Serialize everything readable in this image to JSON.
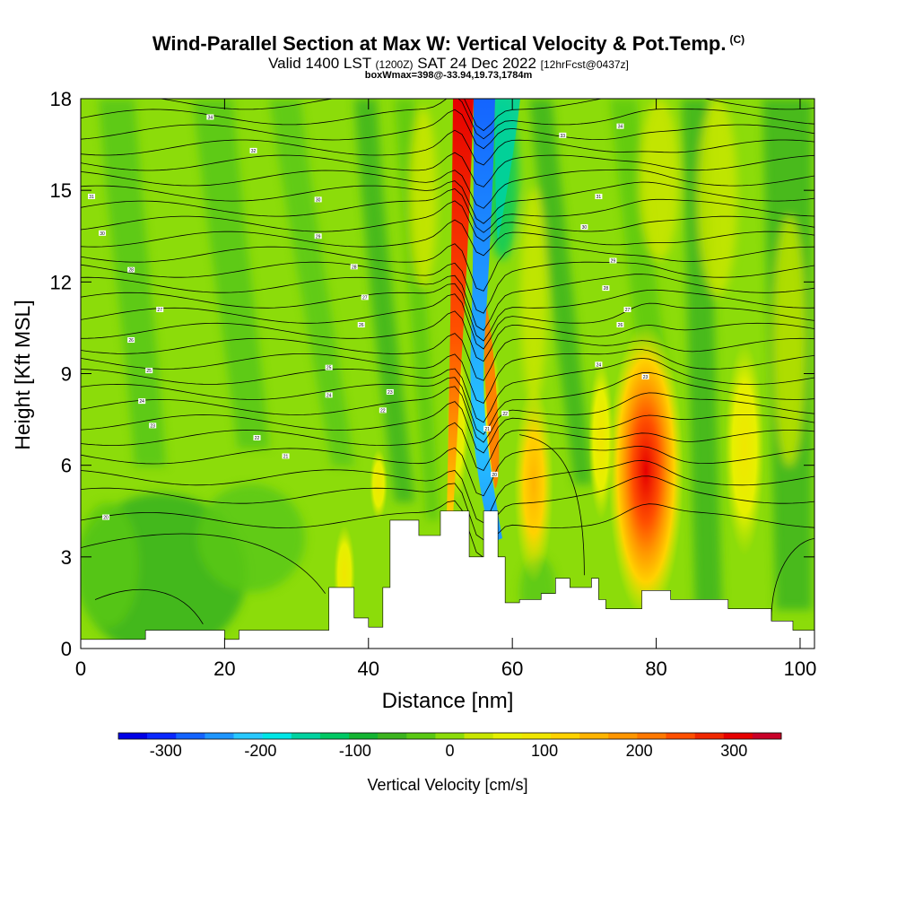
{
  "title": {
    "main": "Wind-Parallel Section at Max W: Vertical Velocity & Pot.Temp.",
    "units_tag": "(C)",
    "valid_prefix": "Valid 1400 LST",
    "valid_utc": "(1200Z)",
    "valid_date": "SAT 24 Dec 2022",
    "forecast": "[12hrFcst@0437z]",
    "box_info": "boxWmax=398@-33.94,19.73,1784m"
  },
  "chart_data": {
    "type": "heatmap",
    "xlabel": "Distance [nm]",
    "ylabel": "Height [Kft MSL]",
    "xlim": [
      0,
      102
    ],
    "ylim": [
      0,
      18
    ],
    "x_ticks": [
      0,
      20,
      40,
      60,
      80,
      100
    ],
    "y_ticks": [
      0,
      3,
      6,
      9,
      12,
      15,
      18
    ],
    "colorbar": {
      "label": "Vertical Velocity [cm/s]",
      "range": [
        -350,
        350
      ],
      "tick_values": [
        -300,
        -200,
        -100,
        0,
        100,
        200,
        300
      ],
      "tick_labels": [
        "-300",
        "-200",
        "-100",
        "0",
        "100",
        "200",
        "300"
      ],
      "colors": [
        "#0000e6",
        "#0a28ff",
        "#1464ff",
        "#1e96ff",
        "#28c8ff",
        "#00e6e6",
        "#00d2a0",
        "#00c864",
        "#14b432",
        "#3cb41e",
        "#5ac814",
        "#8cdc0a",
        "#c8e600",
        "#e6f000",
        "#f0e600",
        "#ffd200",
        "#ffb400",
        "#ff9600",
        "#ff7800",
        "#ff5000",
        "#f02800",
        "#e60000",
        "#c80028"
      ]
    },
    "features": [
      {
        "name": "updraft-core-52nm",
        "x": 52.5,
        "y_range": [
          5,
          18
        ],
        "w_cm_s": 330
      },
      {
        "name": "downdraft-core-56nm",
        "x": 55.5,
        "y_range": [
          3,
          18
        ],
        "w_cm_s": -280
      },
      {
        "name": "updraft-80nm",
        "x": 78.5,
        "y_range": [
          3,
          9
        ],
        "w_cm_s": 330
      },
      {
        "name": "updraft-63nm",
        "x": 63,
        "y_range": [
          3,
          8
        ],
        "w_cm_s": 180
      },
      {
        "name": "updraft-38nm",
        "x": 37.5,
        "y_range": [
          1,
          6
        ],
        "w_cm_s": 130
      }
    ],
    "terrain_kft": [
      [
        0,
        0.3
      ],
      [
        5,
        0.3
      ],
      [
        9,
        0.6
      ],
      [
        18,
        0.6
      ],
      [
        20,
        0.3
      ],
      [
        22,
        0.6
      ],
      [
        34,
        0.6
      ],
      [
        34.5,
        2.0
      ],
      [
        37,
        2.0
      ],
      [
        38,
        1.0
      ],
      [
        40,
        0.7
      ],
      [
        42,
        2.0
      ],
      [
        43,
        4.2
      ],
      [
        46,
        4.2
      ],
      [
        47,
        3.7
      ],
      [
        49,
        3.7
      ],
      [
        50,
        4.5
      ],
      [
        53,
        4.5
      ],
      [
        54,
        3.0
      ],
      [
        56,
        4.5
      ],
      [
        58,
        3.0
      ],
      [
        59,
        1.5
      ],
      [
        61,
        1.6
      ],
      [
        64,
        1.8
      ],
      [
        66,
        2.3
      ],
      [
        68,
        2.0
      ],
      [
        71,
        2.3
      ],
      [
        72,
        1.6
      ],
      [
        73,
        1.3
      ],
      [
        77,
        1.3
      ],
      [
        78,
        1.9
      ],
      [
        81,
        1.9
      ],
      [
        82,
        1.6
      ],
      [
        88,
        1.6
      ],
      [
        90,
        1.3
      ],
      [
        94,
        1.3
      ],
      [
        95,
        1.3
      ],
      [
        96,
        0.9
      ],
      [
        98,
        0.9
      ],
      [
        99,
        0.6
      ],
      [
        102,
        0.6
      ]
    ],
    "theta_contour_labels": [
      {
        "x": 18,
        "y": 17.4,
        "text": "34"
      },
      {
        "x": 24,
        "y": 16.3,
        "text": "32"
      },
      {
        "x": 67,
        "y": 16.8,
        "text": "33"
      },
      {
        "x": 75,
        "y": 17.1,
        "text": "34"
      },
      {
        "x": 33,
        "y": 14.7,
        "text": "30"
      },
      {
        "x": 72,
        "y": 14.8,
        "text": "31"
      },
      {
        "x": 1.5,
        "y": 14.8,
        "text": "31"
      },
      {
        "x": 3,
        "y": 13.6,
        "text": "30"
      },
      {
        "x": 33,
        "y": 13.5,
        "text": "29"
      },
      {
        "x": 70,
        "y": 13.8,
        "text": "30"
      },
      {
        "x": 7,
        "y": 12.4,
        "text": "28"
      },
      {
        "x": 38,
        "y": 12.5,
        "text": "28"
      },
      {
        "x": 74,
        "y": 12.7,
        "text": "29"
      },
      {
        "x": 11,
        "y": 11.1,
        "text": "27"
      },
      {
        "x": 39.5,
        "y": 11.5,
        "text": "27"
      },
      {
        "x": 73,
        "y": 11.8,
        "text": "28"
      },
      {
        "x": 76,
        "y": 11.1,
        "text": "27"
      },
      {
        "x": 7,
        "y": 10.1,
        "text": "26"
      },
      {
        "x": 39,
        "y": 10.6,
        "text": "26"
      },
      {
        "x": 75,
        "y": 10.6,
        "text": "26"
      },
      {
        "x": 9.5,
        "y": 9.1,
        "text": "25"
      },
      {
        "x": 34.5,
        "y": 9.2,
        "text": "25"
      },
      {
        "x": 72,
        "y": 9.3,
        "text": "24"
      },
      {
        "x": 8.5,
        "y": 8.1,
        "text": "24"
      },
      {
        "x": 34.5,
        "y": 8.3,
        "text": "24"
      },
      {
        "x": 43,
        "y": 8.4,
        "text": "23"
      },
      {
        "x": 78.5,
        "y": 8.9,
        "text": "23"
      },
      {
        "x": 10,
        "y": 7.3,
        "text": "23"
      },
      {
        "x": 42,
        "y": 7.8,
        "text": "22"
      },
      {
        "x": 59,
        "y": 7.7,
        "text": "22"
      },
      {
        "x": 24.5,
        "y": 6.9,
        "text": "22"
      },
      {
        "x": 56.5,
        "y": 7.2,
        "text": "21"
      },
      {
        "x": 28.5,
        "y": 6.3,
        "text": "21"
      },
      {
        "x": 57.5,
        "y": 5.7,
        "text": "20"
      },
      {
        "x": 3.5,
        "y": 4.3,
        "text": "20"
      }
    ]
  }
}
